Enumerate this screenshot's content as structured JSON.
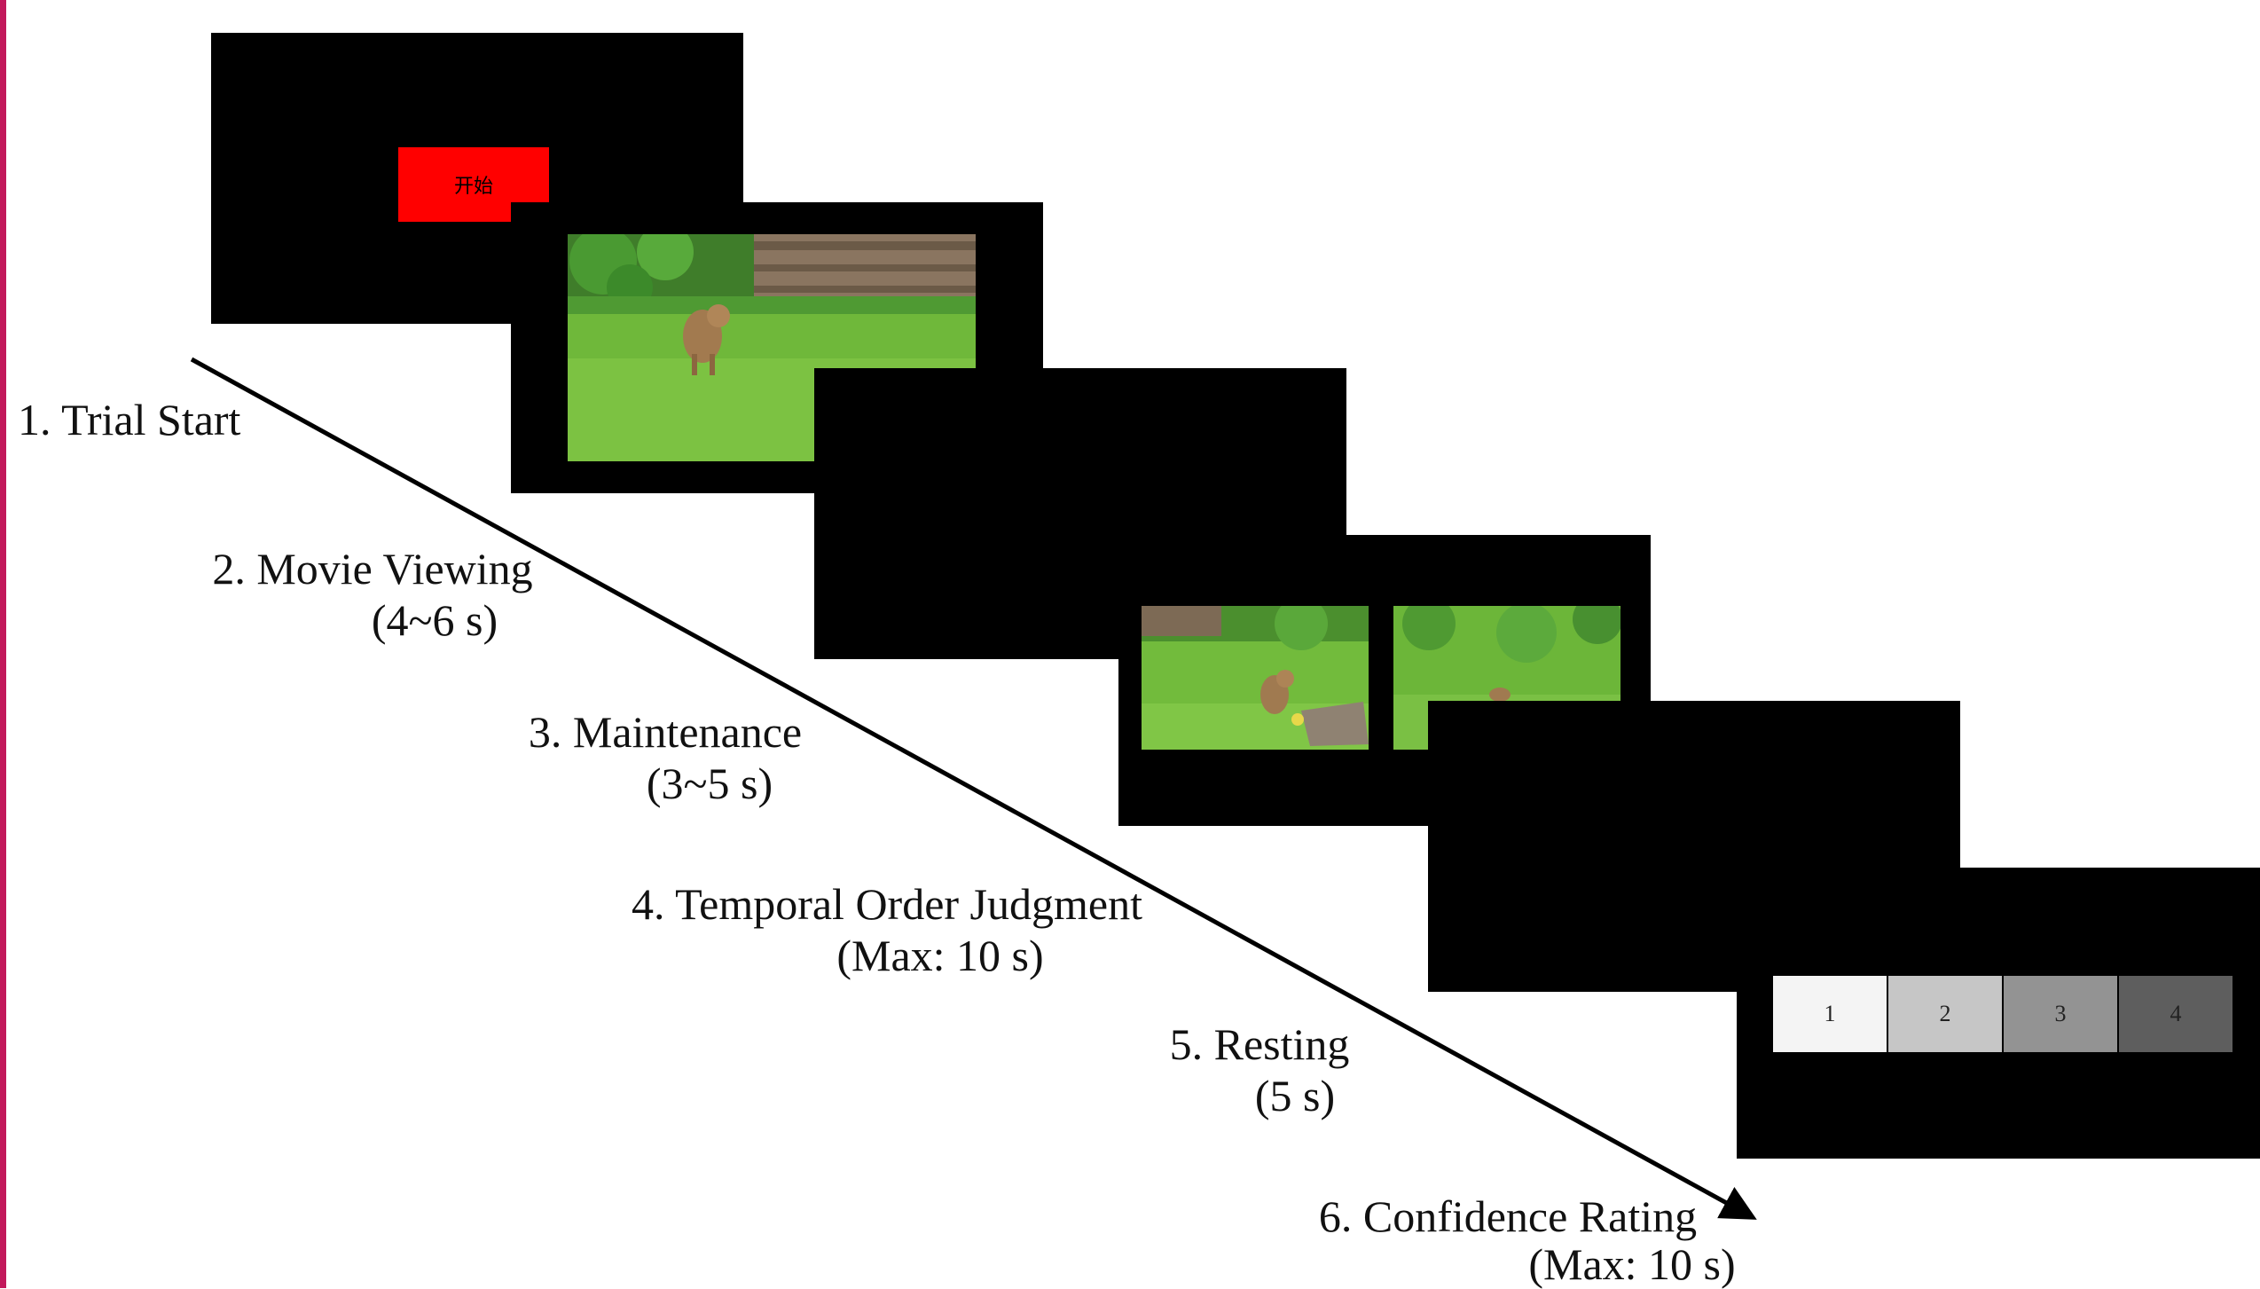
{
  "colors": {
    "left_edge": "#c2185b",
    "screen": "#000000",
    "start_button": "#ff0000",
    "rating": [
      "#f4f4f4",
      "#c6c6c6",
      "#939393",
      "#5e5e5e"
    ]
  },
  "screens": {
    "trial_start": {
      "button_label": "开始"
    },
    "confidence_rating": {
      "options": [
        "1",
        "2",
        "3",
        "4"
      ]
    }
  },
  "stages": [
    {
      "title": "1. Trial Start",
      "duration": ""
    },
    {
      "title": "2. Movie Viewing",
      "duration": "(4~6 s)"
    },
    {
      "title": "3. Maintenance",
      "duration": "(3~5 s)"
    },
    {
      "title": "4. Temporal Order Judgment",
      "duration": "(Max: 10 s)"
    },
    {
      "title": "5. Resting",
      "duration": "(5 s)"
    },
    {
      "title": "6. Confidence Rating",
      "duration": "(Max: 10 s)"
    }
  ]
}
